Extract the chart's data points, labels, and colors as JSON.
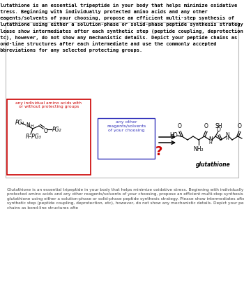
{
  "title_text": "Glutathione is an essential tripeptide in your body that helps minimize oxidative stress. Beginning with individually protected amino acids and any other reagents/solvents of your choosing, propose an efficient multi-step synthesis of glutathione using either a solution-phase or solid-phase peptide synthesis strategy. Please show intermediates after each synthetic step (peptide coupling, deprotection, etc), however, do not show any mechanistic details. Depict your peptide chains as bond-line structures after each intermediate and use the commonly accepted abbreviations for any selected protecting groups.",
  "footer_text": "Glutathione is an essential tripeptide in your body that helps minimize oxidative stress. Beginning with individually\nprotected amino acids and any other reagents/solvents of your choosing, propose an efficient multi-step synthesis of\nglutathione using either a solution-phase or solid-phase peptide synthesis strategy. Please show intermediates after each\nsynthetic step (peptide coupling, deprotection, etc), however, do not show any mechanistic details. Depict your peptide\nchains as bond-line structures afte",
  "box1_label1": "any individual amino acids with",
  "box1_label2": "or without protecting groups",
  "box2_label": "any other\nreagents/solvents\nof your choosing",
  "question_mark": "?",
  "glutathione_label": "glutathione",
  "bg_color": "#ffffff",
  "box1_edge_color": "#cc0000",
  "box1_text_color": "#cc0000",
  "box2_edge_color": "#3333bb",
  "box2_text_color": "#3333bb",
  "question_color": "#cc0000",
  "pg1_label": "PG₁",
  "pg2_label": "PG₂",
  "pg3_label": "PG₃",
  "r_pg3_label": "R–PG₃"
}
